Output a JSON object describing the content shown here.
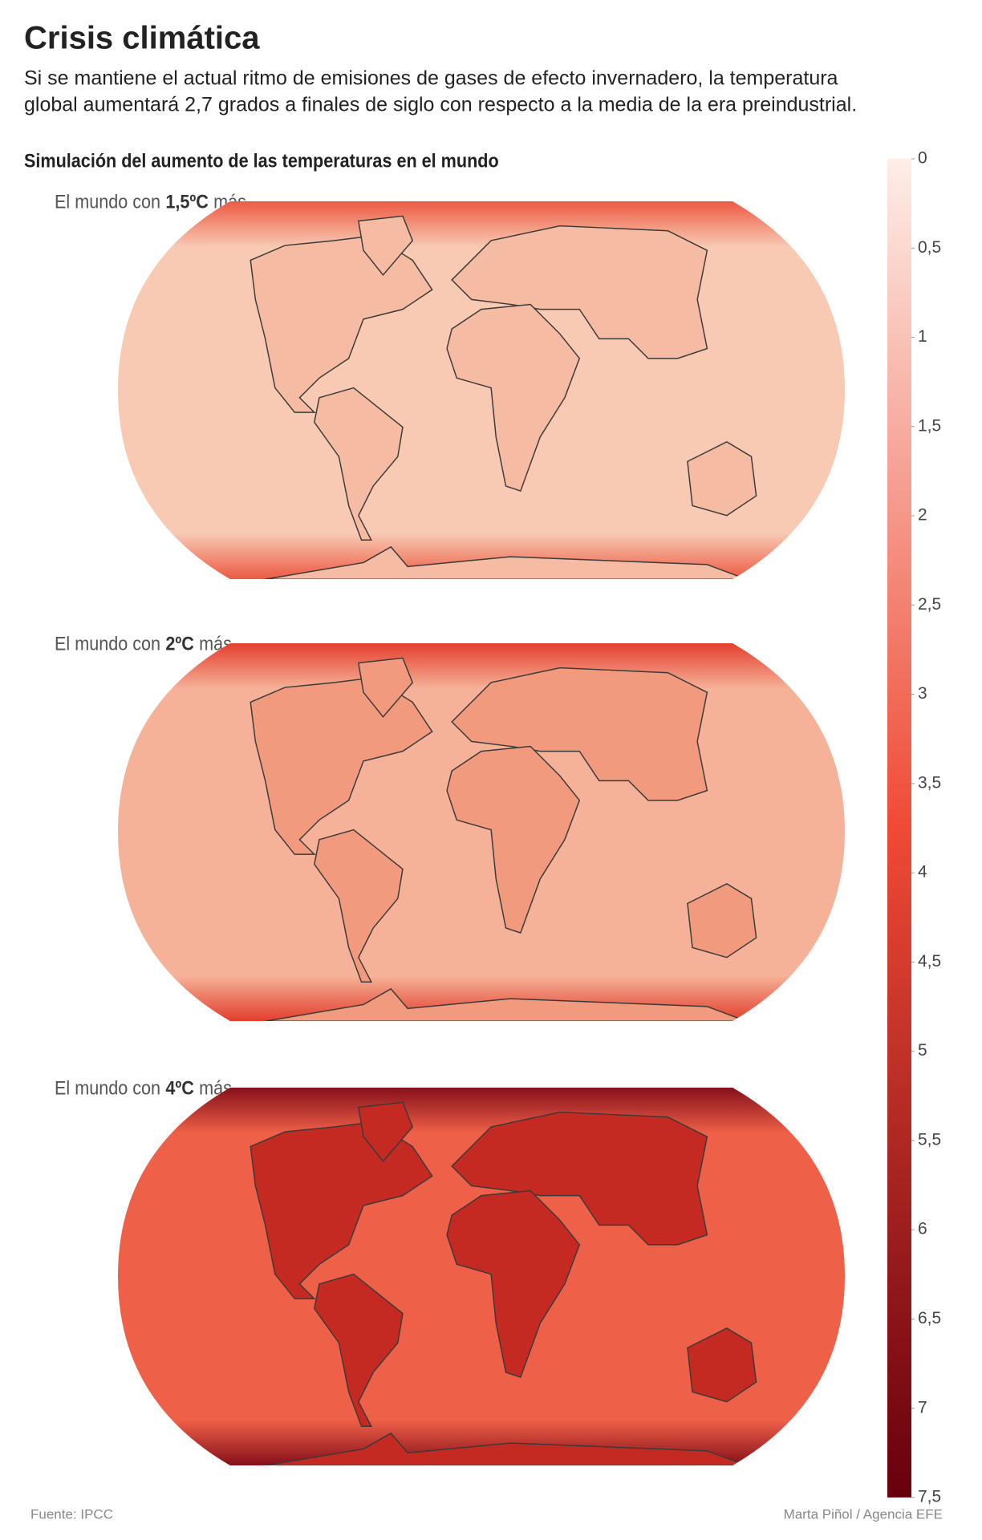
{
  "header": {
    "title": "Crisis climática",
    "subtitle": [
      "Si se mantiene el actual ritmo de emisiones de gases de efecto invernadero, la temperatura",
      "global aumentará 2,7 grados a finales de siglo con respecto a la media de la era preindustrial."
    ],
    "heading": "Simulación del aumento de las temperaturas en el mundo"
  },
  "maps": [
    {
      "label": "El mundo con",
      "label_bold": "1,5ºC",
      "label_end": "más",
      "ocean_color": "#f8c9b3",
      "land_color": "#f6bca3",
      "polar_color": "#ec5a42"
    },
    {
      "label": "El mundo con",
      "label_bold": "2ºC",
      "label_end": "más",
      "ocean_color": "#f6b298",
      "land_color": "#f19a7d",
      "polar_color": "#e33e2d"
    },
    {
      "label": "El mundo con",
      "label_bold": "4ºC",
      "label_end": "más",
      "ocean_color": "#ef6048",
      "land_color": "#c42a22",
      "polar_color": "#86101a"
    }
  ],
  "colorbar": {
    "lim": [
      0,
      7.5
    ],
    "color_low": "#fdeee7",
    "color_high": "#67000d",
    "ticks": [
      0,
      {
        "value": 0.5,
        "label": "0,5"
      },
      1,
      {
        "value": 1.5,
        "label": "1,5"
      },
      2,
      {
        "value": 2.5,
        "label": "2,5"
      },
      3,
      {
        "value": 3.5,
        "label": "3,5"
      },
      4,
      {
        "value": 4.5,
        "label": "4,5"
      },
      5,
      {
        "value": 5.5,
        "label": "5,5"
      },
      6,
      {
        "value": 6.5,
        "label": "6,5"
      },
      7,
      {
        "value": 7.5,
        "label": "7,5"
      }
    ]
  },
  "footer": {
    "source": "Fuente: IPCC",
    "credit": "Marta Piñol / Agencia EFE"
  }
}
